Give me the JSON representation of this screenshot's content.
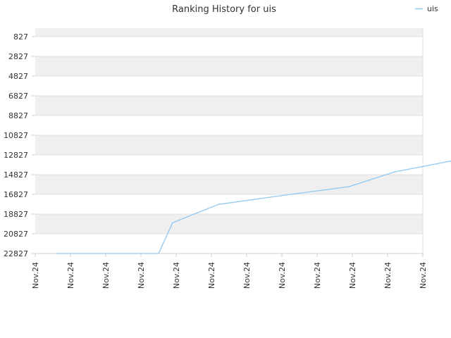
{
  "chart_data": {
    "type": "line",
    "title": "Ranking History for uis",
    "xlabel": "",
    "ylabel": "",
    "y_inverted": true,
    "ylim": [
      827,
      22827
    ],
    "y_ticks": [
      827,
      2827,
      4827,
      6827,
      8827,
      10827,
      12827,
      14827,
      16827,
      18827,
      20827,
      22827
    ],
    "x_tick_labels": [
      "Nov.24",
      "Nov.24",
      "Nov.24",
      "Nov.24",
      "Nov.24",
      "Nov.24",
      "Nov.24",
      "Nov.24",
      "Nov.24",
      "Nov.24",
      "Nov.24",
      "Nov.24"
    ],
    "grid": "horizontal bands",
    "legend_position": "top-right",
    "series": [
      {
        "name": "uis",
        "color": "#90c8f0",
        "x": [
          0.6,
          3.5,
          3.9,
          5.2,
          7.1,
          8.9,
          10.2,
          11.8,
          11.9
        ],
        "values": [
          22827,
          22827,
          19700,
          17850,
          16900,
          16050,
          14550,
          13450,
          12930
        ]
      }
    ]
  }
}
